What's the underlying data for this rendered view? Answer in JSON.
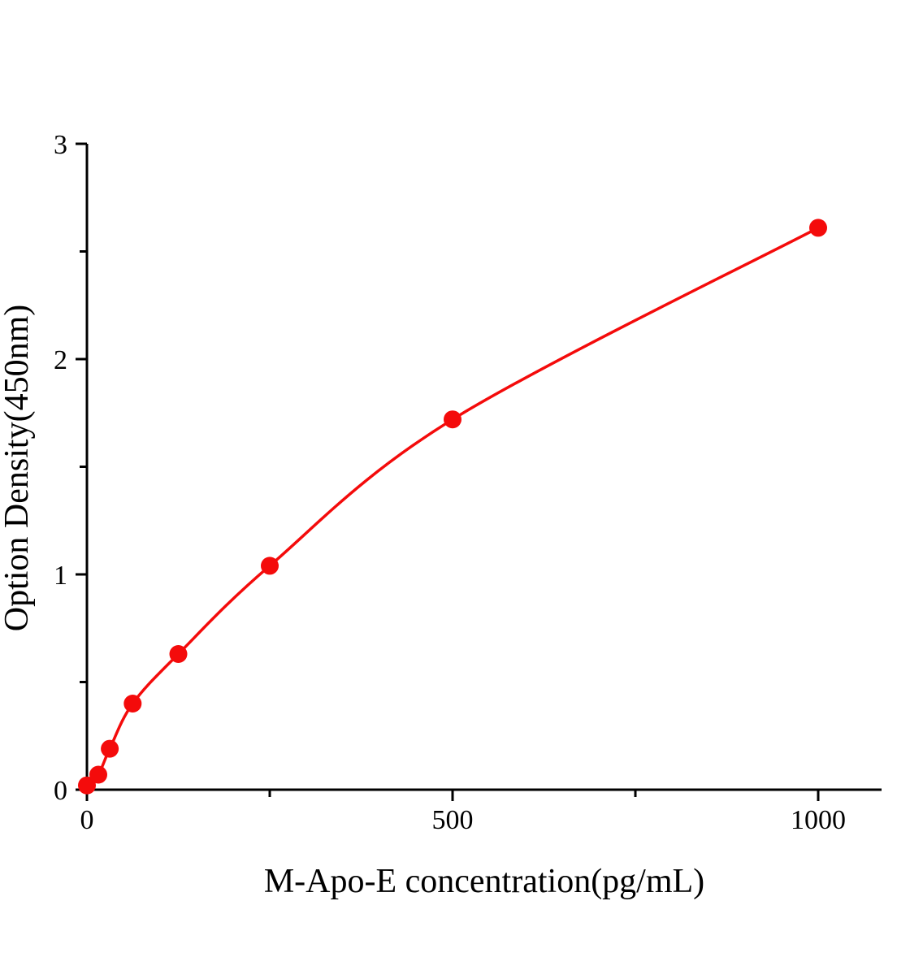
{
  "chart_data": {
    "type": "line",
    "title": "",
    "xlabel": "M-Apo-E concentration(pg/mL)",
    "ylabel": "Option Density(450nm)",
    "x": [
      0,
      15.6,
      31.2,
      62.5,
      125,
      250,
      500,
      1000
    ],
    "y": [
      0.02,
      0.07,
      0.19,
      0.4,
      0.63,
      1.04,
      1.72,
      2.61
    ],
    "xlim": [
      0,
      1085
    ],
    "ylim": [
      0,
      3
    ],
    "x_major_ticks": [
      0,
      500,
      1000
    ],
    "x_minor_ticks": [
      250,
      750
    ],
    "y_major_ticks": [
      0,
      1,
      2,
      3
    ],
    "y_minor_ticks": [
      0.5,
      1.5,
      2.5
    ],
    "x_tick_labels": [
      "0",
      "500",
      "1000"
    ],
    "y_tick_labels": [
      "0",
      "1",
      "2",
      "3"
    ],
    "legend": null,
    "grid": false,
    "line_color": "#f40b0b",
    "marker_color": "#f40b0b",
    "axis_color": "#000000"
  }
}
